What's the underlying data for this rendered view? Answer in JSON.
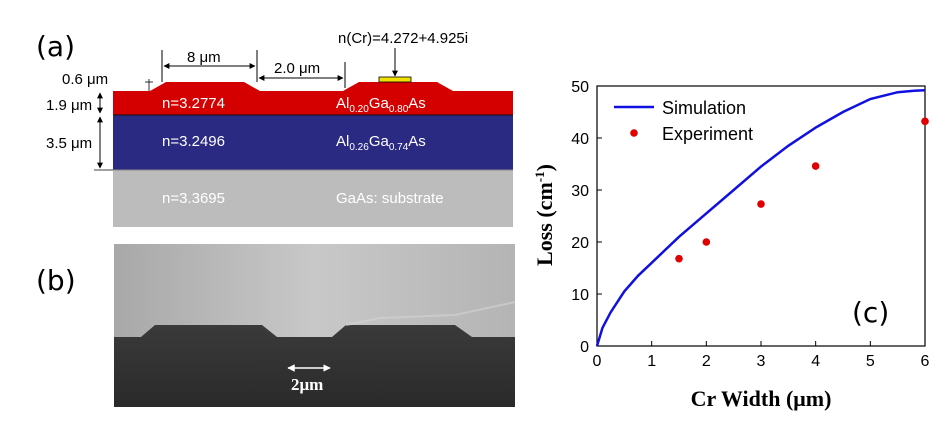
{
  "panel_a": {
    "label": "(a)",
    "dims": {
      "ridge_width": "8 μm",
      "gap": "2.0 μm",
      "ridge_height": "0.6 μm",
      "upper_thickness": "1.9 μm",
      "lower_thickness": "3.5 μm",
      "cr_index": "n(Cr)=4.272+4.925i"
    },
    "layers": [
      {
        "index": "n=3.2774",
        "mat_pre": "Al",
        "mat_sub1": "0.20",
        "mat_mid": "Ga",
        "mat_sub2": "0.80",
        "mat_post": "As",
        "color": "#d40000"
      },
      {
        "index": "n=3.2496",
        "mat_pre": "Al",
        "mat_sub1": "0.26",
        "mat_mid": "Ga",
        "mat_sub2": "0.74",
        "mat_post": "As",
        "color": "#2b2a82"
      },
      {
        "index": "n=3.3695",
        "material": "GaAs: substrate",
        "color": "#bcbcbc"
      }
    ],
    "cr_color": "#f0e000"
  },
  "panel_b": {
    "label": "(b)",
    "scale": "2μm"
  },
  "chart_data": {
    "type": "line",
    "panel_label": "(c)",
    "xlabel": "Cr Width (μm)",
    "ylabel_main": "Loss (cm",
    "ylabel_sup": "-1",
    "ylabel_end": ")",
    "xlim": [
      0,
      6
    ],
    "ylim": [
      0,
      50
    ],
    "xticks": [
      0,
      1,
      2,
      3,
      4,
      5,
      6
    ],
    "yticks": [
      0,
      10,
      20,
      30,
      40,
      50
    ],
    "legend_position": "top-left",
    "series": [
      {
        "name": "Simulation",
        "style": "line",
        "color": "#1010e0",
        "x": [
          0,
          0.1,
          0.25,
          0.5,
          0.75,
          1.0,
          1.5,
          2.0,
          2.5,
          3.0,
          3.5,
          4.0,
          4.5,
          5.0,
          5.5,
          5.8,
          6.0
        ],
        "y": [
          0,
          3.5,
          6.5,
          10.5,
          13.5,
          16.0,
          21.0,
          25.5,
          30.0,
          34.5,
          38.5,
          42.0,
          45.0,
          47.5,
          48.8,
          49.1,
          49.2
        ]
      },
      {
        "name": "Experiment",
        "style": "scatter",
        "color": "#e00000",
        "x": [
          1.5,
          2.0,
          3.0,
          4.0,
          6.0
        ],
        "y": [
          16.8,
          20.0,
          27.3,
          34.6,
          43.2
        ]
      }
    ]
  }
}
